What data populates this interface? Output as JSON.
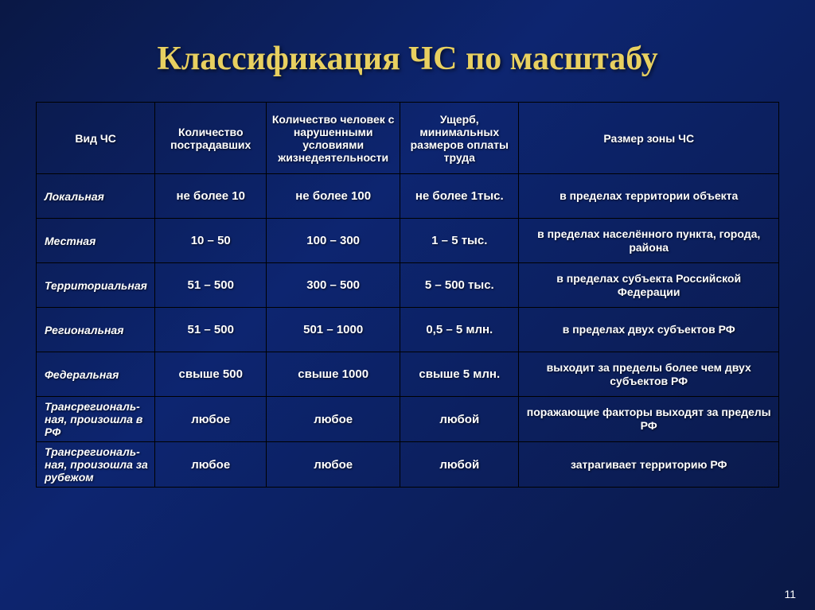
{
  "title": "Классификация ЧС по масштабу",
  "page_number": "11",
  "colors": {
    "title_color": "#e8d060",
    "text_color": "#ffffff",
    "border_color": "#000000",
    "bg_gradient_start": "#0a1845",
    "bg_gradient_mid": "#0d2570"
  },
  "table": {
    "columns": [
      "Вид ЧС",
      "Количество пострадавших",
      "Количество человек с нарушенными условиями жизнедеятельности",
      "Ущерб, минимальных размеров оплаты труда",
      "Размер зоны ЧС"
    ],
    "rows": [
      {
        "type": "Локальная",
        "victims": "не более 10",
        "affected": "не более 100",
        "damage": "не более 1тыс.",
        "zone": "в пределах территории объекта"
      },
      {
        "type": "Местная",
        "victims": "10 – 50",
        "affected": "100 – 300",
        "damage": "1 – 5 тыс.",
        "zone": "в пределах населённого пункта, города, района"
      },
      {
        "type": "Территориальная",
        "victims": "51 – 500",
        "affected": "300 – 500",
        "damage": "5 – 500 тыс.",
        "zone": "в пределах субъекта Российской Федерации"
      },
      {
        "type": "Региональная",
        "victims": "51 – 500",
        "affected": "501 – 1000",
        "damage": "0,5 – 5 млн.",
        "zone": "в пределах двух субъектов РФ"
      },
      {
        "type": "Федеральная",
        "victims": "свыше 500",
        "affected": "свыше 1000",
        "damage": "свыше 5 млн.",
        "zone": "выходит за пределы более чем двух субъектов РФ"
      },
      {
        "type": "Трансрегиональ-ная, произошла в РФ",
        "victims": "любое",
        "affected": "любое",
        "damage": "любой",
        "zone": "поражающие факторы выходят за пределы РФ"
      },
      {
        "type": "Трансрегиональ-ная, произошла за рубежом",
        "victims": "любое",
        "affected": "любое",
        "damage": "любой",
        "zone": "затрагивает территорию РФ"
      }
    ]
  }
}
